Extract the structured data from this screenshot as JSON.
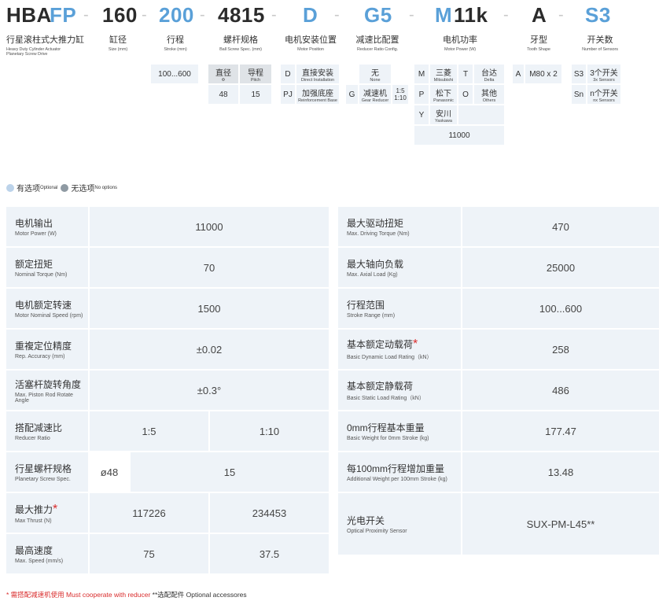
{
  "model_code": {
    "parts": [
      "HBA",
      "FP",
      "160",
      "200",
      "4815",
      "D",
      "G5",
      "M",
      "11k",
      "A",
      "S3"
    ],
    "separator": "-"
  },
  "labels": [
    {
      "zh": "行星滚柱式大推力缸",
      "en1": "Heavy Duty Cylinder Actuator",
      "en2": "Planetary Screw Drive"
    },
    {
      "zh": "缸径",
      "en": "Size (mm)"
    },
    {
      "zh": "行程",
      "en": "Stroke (mm)"
    },
    {
      "zh": "螺杆规格",
      "en": "Ball Screw Spec. (mm)"
    },
    {
      "zh": "电机安装位置",
      "en": "Motor Position"
    },
    {
      "zh": "减速比配置",
      "en": "Reducer Ratio Config."
    },
    {
      "zh": "电机功率",
      "en": "Motor Power (W)"
    },
    {
      "zh": "牙型",
      "en": "Tooth Shape"
    },
    {
      "zh": "开关数",
      "en": "Number of Sensors"
    }
  ],
  "options": {
    "stroke": "100...600",
    "screw": {
      "h1_zh": "直径",
      "h1_en": "Φ",
      "h2_zh": "导程",
      "h2_en": "Pitch",
      "v1": "48",
      "v2": "15"
    },
    "motor_position": [
      {
        "code": "D",
        "zh": "直接安装",
        "en": "Direct Installation"
      },
      {
        "code": "PJ",
        "zh": "加强底座",
        "en": "Reinforcement Base"
      }
    ],
    "reducer": {
      "none_zh": "无",
      "none_en": "None",
      "code": "G",
      "zh": "减速机",
      "en": "Gear Reducer",
      "r1": "1:5",
      "r2": "1:10"
    },
    "motor_power": {
      "brands": [
        {
          "code": "M",
          "zh": "三菱",
          "en": "Mitsubishi"
        },
        {
          "code": "T",
          "zh": "台达",
          "en": "Delta"
        },
        {
          "code": "P",
          "zh": "松下",
          "en": "Panasonic"
        },
        {
          "code": "O",
          "zh": "其他",
          "en": "Others"
        },
        {
          "code": "Y",
          "zh": "安川",
          "en": "Yaskawa"
        }
      ],
      "value": "11000"
    },
    "tooth": {
      "code": "A",
      "value": "M80 x 2"
    },
    "sensors": [
      {
        "code": "S3",
        "zh": "3个开关",
        "en": "3x Sensors"
      },
      {
        "code": "Sn",
        "zh": "n个开关",
        "en": "nx Sensors"
      }
    ]
  },
  "legend": {
    "opt_zh": "有选项",
    "opt_en": "Optional",
    "no_zh": "无选项",
    "no_en": "No options",
    "opt_color": "#bcd3ea",
    "no_color": "#8f9aa3"
  },
  "left_table": [
    {
      "zh": "电机输出",
      "en": "Motor Power (W)",
      "values": [
        "11000"
      ]
    },
    {
      "zh": "额定扭矩",
      "en": "Nominal Torque (Nm)",
      "values": [
        "70"
      ]
    },
    {
      "zh": "电机额定转速",
      "en": "Motor Nominal Speed (rpm)",
      "values": [
        "1500"
      ]
    },
    {
      "zh": "重複定位精度",
      "en": "Rep. Accuracy (mm)",
      "values": [
        "±0.02"
      ]
    },
    {
      "zh": "活塞杆旋转角度",
      "en": "Max. Piston Rod Rotate Angle",
      "values": [
        "±0.3°"
      ]
    },
    {
      "zh": "搭配减速比",
      "en": "Reducer Ratio",
      "values": [
        "1:5",
        "1:10"
      ]
    },
    {
      "zh": "行星螺杆规格",
      "en": "Planetary Screw Spec.",
      "values": [
        "ø48",
        "15"
      ]
    },
    {
      "zh": "最大推力",
      "star": "*",
      "en": "Max Thrust (N)",
      "values": [
        "117226",
        "234453"
      ]
    },
    {
      "zh": "最高速度",
      "en": "Max. Speed (mm/s)",
      "values": [
        "75",
        "37.5"
      ]
    }
  ],
  "right_table": [
    {
      "zh": "最大驱动扭矩",
      "en": "Max. Driving Torque (Nm)",
      "value": "470"
    },
    {
      "zh": "最大轴向负载",
      "en": "Max. Axial Load (Kg)",
      "value": "25000"
    },
    {
      "zh": "行程范围",
      "en": "Stroke Range (mm)",
      "value": "100...600"
    },
    {
      "zh": "基本额定动载荷",
      "star": "*",
      "en": "Basic Dynamic Load Rating（kN）",
      "value": "258"
    },
    {
      "zh": "基本额定静载荷",
      "en": "Basic Static Load Rating（kN）",
      "value": "486"
    },
    {
      "zh": "0mm行程基本重量",
      "en": "Basic Weight for 0mm Stroke (kg)",
      "value": "177.47"
    },
    {
      "zh": "每100mm行程增加重量",
      "en": "Additional Weight per 100mm Stroke (kg)",
      "value": "13.48"
    },
    {
      "zh": "光电开关",
      "en": "Optical Proximity Sensor",
      "value": "SUX-PM-L45**"
    }
  ],
  "footnote": {
    "star": "*",
    "text": " 需搭配减速机使用  Must cooperate with reducer ",
    "rest": "**选配配件 Optional accessores"
  },
  "colors": {
    "accent": "#5aa0d8",
    "cell_bg": "#eef3f8",
    "star": "#d92c2c"
  }
}
